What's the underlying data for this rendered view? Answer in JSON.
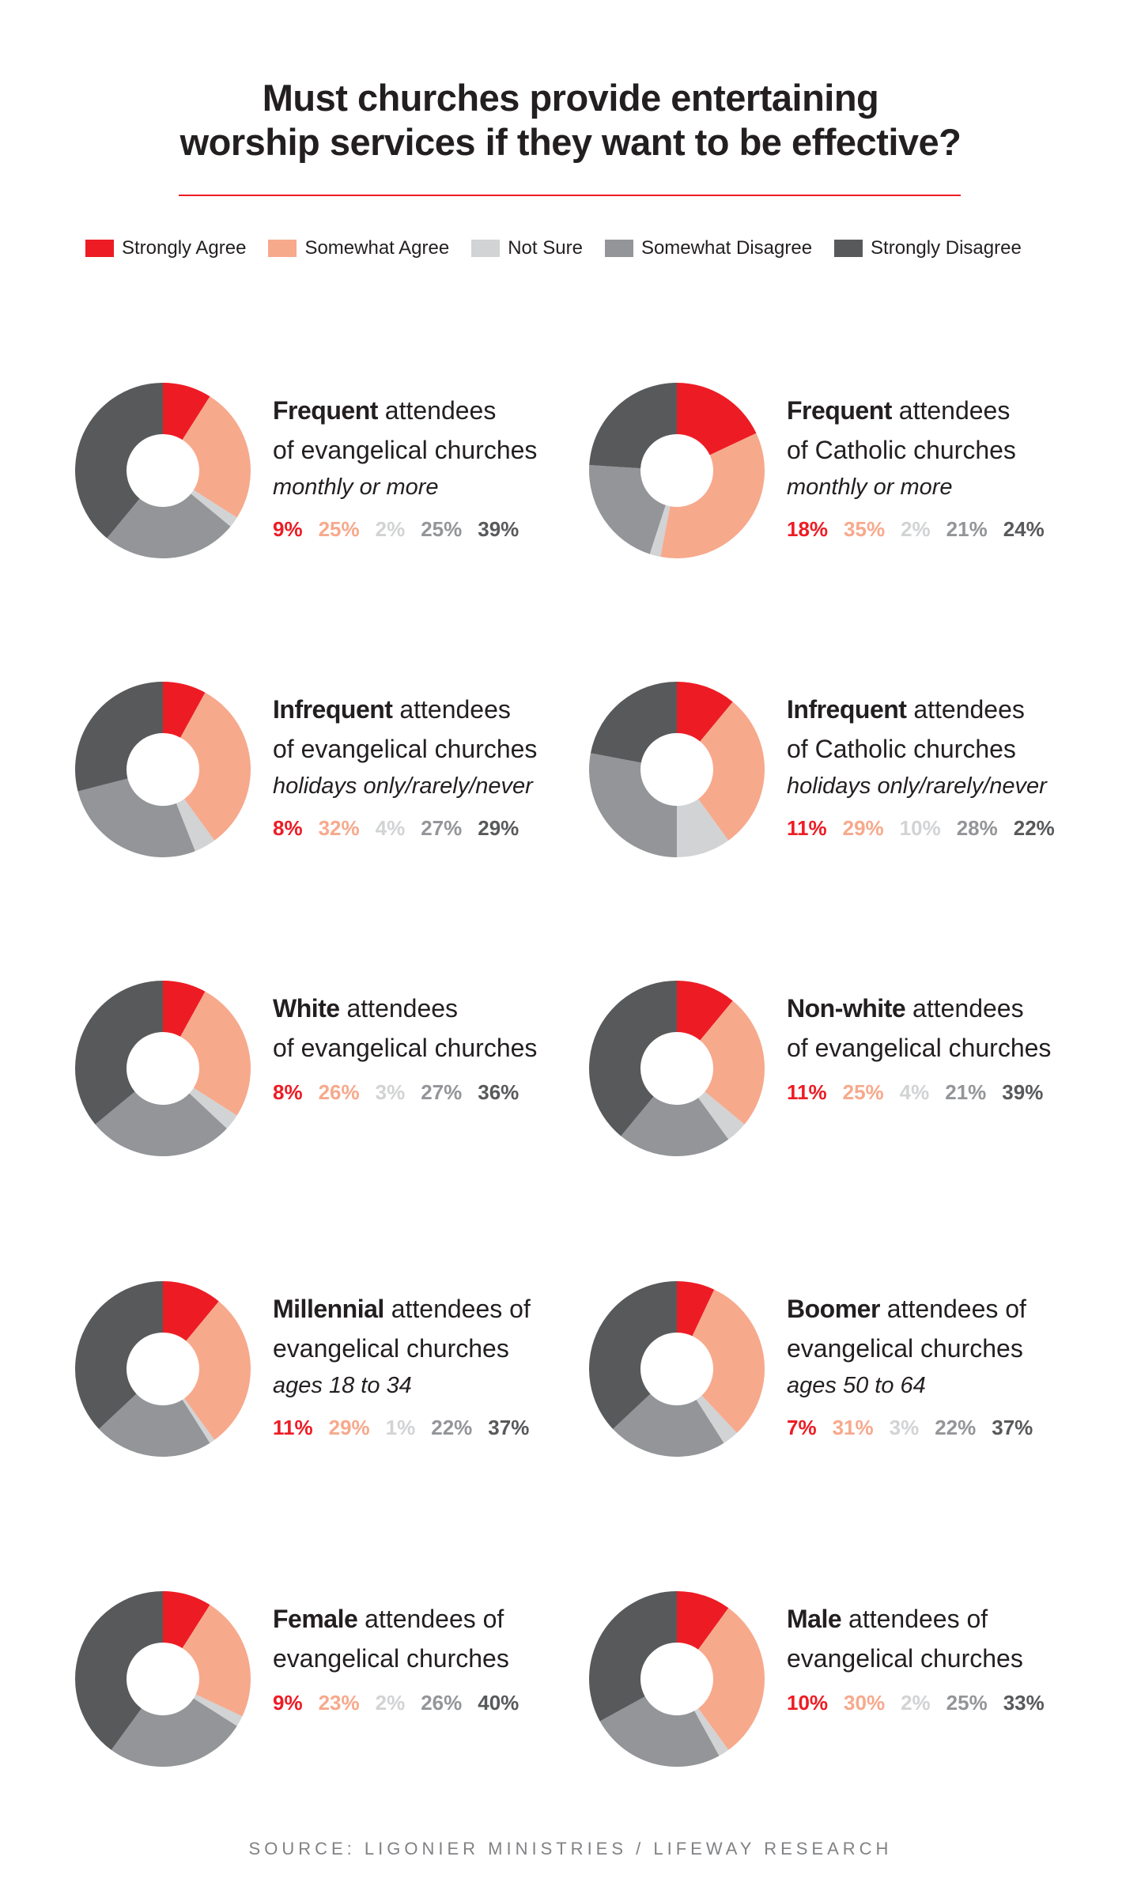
{
  "title": {
    "line1": "Must churches provide entertaining",
    "line2": "worship services if they want to be effective?"
  },
  "colors": {
    "strongly_agree": "#ed1c24",
    "somewhat_agree": "#f7a98c",
    "not_sure": "#d1d3d4",
    "somewhat_disagree": "#939598",
    "strongly_disagree": "#58595b"
  },
  "legend": [
    {
      "label": "Strongly Agree",
      "color": "#ed1c24"
    },
    {
      "label": "Somewhat Agree",
      "color": "#f7a98c"
    },
    {
      "label": "Not Sure",
      "color": "#d1d3d4"
    },
    {
      "label": "Somewhat Disagree",
      "color": "#939598"
    },
    {
      "label": "Strongly Disagree",
      "color": "#58595b"
    }
  ],
  "source": "SOURCE: LIGONIER MINISTRIES / LIFEWAY RESEARCH",
  "chart_data": [
    {
      "type": "pie",
      "bold": "Frequent",
      "rest": " attendees",
      "line2": "of evangelical churches",
      "sub": "monthly or more",
      "categories": [
        "Strongly Agree",
        "Somewhat Agree",
        "Not Sure",
        "Somewhat Disagree",
        "Strongly Disagree"
      ],
      "values": [
        9,
        25,
        2,
        25,
        39
      ],
      "labels": [
        "9%",
        "25%",
        "2%",
        "25%",
        "39%"
      ]
    },
    {
      "type": "pie",
      "bold": "Frequent",
      "rest": " attendees",
      "line2": "of Catholic churches",
      "sub": "monthly or more",
      "categories": [
        "Strongly Agree",
        "Somewhat Agree",
        "Not Sure",
        "Somewhat Disagree",
        "Strongly Disagree"
      ],
      "values": [
        18,
        35,
        2,
        21,
        24
      ],
      "labels": [
        "18%",
        "35%",
        "2%",
        "21%",
        "24%"
      ]
    },
    {
      "type": "pie",
      "bold": "Infrequent",
      "rest": " attendees",
      "line2": "of evangelical churches",
      "sub": "holidays only/rarely/never",
      "categories": [
        "Strongly Agree",
        "Somewhat Agree",
        "Not Sure",
        "Somewhat Disagree",
        "Strongly Disagree"
      ],
      "values": [
        8,
        32,
        4,
        27,
        29
      ],
      "labels": [
        "8%",
        "32%",
        "4%",
        "27%",
        "29%"
      ]
    },
    {
      "type": "pie",
      "bold": "Infrequent",
      "rest": " attendees",
      "line2": "of Catholic churches",
      "sub": "holidays only/rarely/never",
      "categories": [
        "Strongly Agree",
        "Somewhat Agree",
        "Not Sure",
        "Somewhat Disagree",
        "Strongly Disagree"
      ],
      "values": [
        11,
        29,
        10,
        28,
        22
      ],
      "labels": [
        "11%",
        "29%",
        "10%",
        "28%",
        "22%"
      ]
    },
    {
      "type": "pie",
      "bold": "White",
      "rest": " attendees",
      "line2": "of evangelical churches",
      "sub": "",
      "categories": [
        "Strongly Agree",
        "Somewhat Agree",
        "Not Sure",
        "Somewhat Disagree",
        "Strongly Disagree"
      ],
      "values": [
        8,
        26,
        3,
        27,
        36
      ],
      "labels": [
        "8%",
        "26%",
        "3%",
        "27%",
        "36%"
      ]
    },
    {
      "type": "pie",
      "bold": "Non-white",
      "rest": " attendees",
      "line2": "of evangelical churches",
      "sub": "",
      "categories": [
        "Strongly Agree",
        "Somewhat Agree",
        "Not Sure",
        "Somewhat Disagree",
        "Strongly Disagree"
      ],
      "values": [
        11,
        25,
        4,
        21,
        39
      ],
      "labels": [
        "11%",
        "25%",
        "4%",
        "21%",
        "39%"
      ]
    },
    {
      "type": "pie",
      "bold": "Millennial",
      "rest": " attendees of",
      "line2": "evangelical churches",
      "sub": "ages 18 to 34",
      "categories": [
        "Strongly Agree",
        "Somewhat Agree",
        "Not Sure",
        "Somewhat Disagree",
        "Strongly Disagree"
      ],
      "values": [
        11,
        29,
        1,
        22,
        37
      ],
      "labels": [
        "11%",
        "29%",
        "1%",
        "22%",
        "37%"
      ]
    },
    {
      "type": "pie",
      "bold": "Boomer",
      "rest": " attendees of",
      "line2": "evangelical churches",
      "sub": "ages 50 to 64",
      "categories": [
        "Strongly Agree",
        "Somewhat Agree",
        "Not Sure",
        "Somewhat Disagree",
        "Strongly Disagree"
      ],
      "values": [
        7,
        31,
        3,
        22,
        37
      ],
      "labels": [
        "7%",
        "31%",
        "3%",
        "22%",
        "37%"
      ]
    },
    {
      "type": "pie",
      "bold": "Female",
      "rest": " attendees of",
      "line2": "evangelical churches",
      "sub": "",
      "categories": [
        "Strongly Agree",
        "Somewhat Agree",
        "Not Sure",
        "Somewhat Disagree",
        "Strongly Disagree"
      ],
      "values": [
        9,
        23,
        2,
        26,
        40
      ],
      "labels": [
        "9%",
        "23%",
        "2%",
        "26%",
        "40%"
      ]
    },
    {
      "type": "pie",
      "bold": "Male",
      "rest": " attendees of",
      "line2": "evangelical churches",
      "sub": "",
      "categories": [
        "Strongly Agree",
        "Somewhat Agree",
        "Not Sure",
        "Somewhat Disagree",
        "Strongly Disagree"
      ],
      "values": [
        10,
        30,
        2,
        25,
        33
      ],
      "labels": [
        "10%",
        "30%",
        "2%",
        "25%",
        "33%"
      ]
    }
  ]
}
